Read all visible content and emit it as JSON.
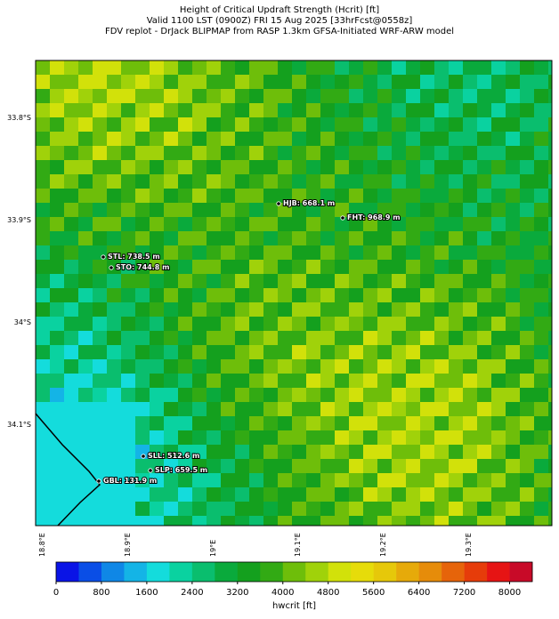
{
  "header": {
    "lines": [
      "Height of Critical Updraft Strength (Hcrit) [ft]",
      "Valid 1100 LST (0900Z) FRI 15 Aug 2025 [33hrFcst@0558z]",
      "FDV replot - DrJack BLIPMAP from RASP 1.3km GFSA-Initiated WRF-ARW model"
    ]
  },
  "map": {
    "lat_labels": [
      "33.8°S",
      "33.9°S",
      "34°S",
      "34.1°S"
    ],
    "lon_labels": [
      "18.8°E",
      "18.9°E",
      "19°E",
      "19.1°E",
      "19.2°E",
      "19.3°E"
    ],
    "stations": [
      "HJB: 668.1 m",
      "FHT: 968.9 m",
      "STL: 738.5 m",
      "STO: 744.8 m",
      "SLL: 512.6 m",
      "SLP: 659.5 m",
      "GBL: 131.9 m"
    ]
  },
  "colorbar": {
    "label": "hwcrit [ft]",
    "lim": [
      0,
      8400
    ],
    "ticks": [
      0,
      800,
      1600,
      2400,
      3200,
      4000,
      4800,
      5600,
      6400,
      7200,
      8000
    ],
    "colors": [
      "#0a14e6",
      "#0a4ee6",
      "#0f87e6",
      "#14b4e6",
      "#14dcdc",
      "#0ad2a0",
      "#0abe6e",
      "#0aaa3c",
      "#14a01e",
      "#32aa14",
      "#6ebe0a",
      "#a0d20a",
      "#d2e10a",
      "#e6dc0a",
      "#e6c80a",
      "#e6aa0a",
      "#e68c0a",
      "#e6640a",
      "#e63c0a",
      "#e61414",
      "#c80a28"
    ]
  }
}
